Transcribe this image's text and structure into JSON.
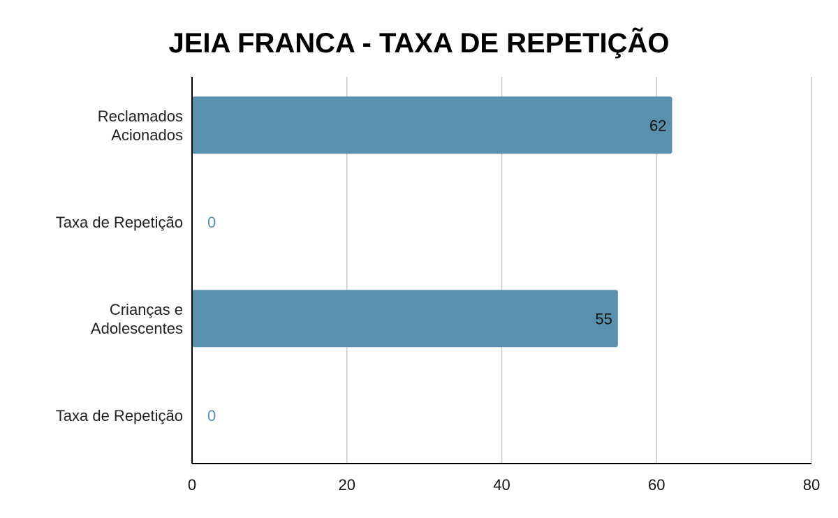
{
  "chart_data": {
    "type": "bar",
    "orientation": "horizontal",
    "title": "JEIA FRANCA - TAXA DE REPETIÇÃO",
    "categories": [
      [
        "Reclamados",
        "Acionados"
      ],
      [
        "Taxa de Repetição"
      ],
      [
        "Crianças e",
        "Adolescentes"
      ],
      [
        "Taxa de Repetição"
      ]
    ],
    "values": [
      62,
      0,
      55,
      0
    ],
    "data_labels": [
      "62",
      "0",
      "55",
      "0"
    ],
    "xlim": [
      0,
      80
    ],
    "x_ticks": [
      "0",
      "20",
      "40",
      "60",
      "80"
    ],
    "x_tick_values": [
      0,
      20,
      40,
      60,
      80
    ],
    "grid": true,
    "legend": "none",
    "colors": {
      "bar": "#5990ae",
      "label_inside": "#111111",
      "label_outside": "#5990ae",
      "grid": "#c8c8c8",
      "axis": "#000000"
    }
  }
}
